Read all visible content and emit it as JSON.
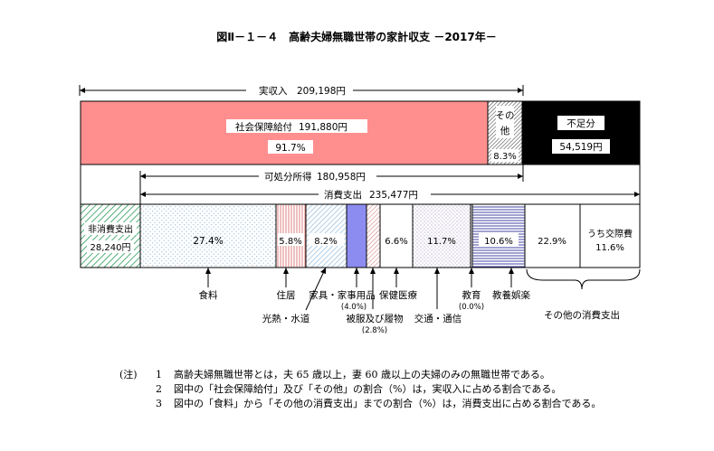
{
  "title": "図Ⅱ－１－４　高齢夫婦無職世帯の家計収支 －2017年－",
  "income": {
    "total_label": "実収入",
    "total_value": "209,198円",
    "social_security_label": "社会保障給付",
    "social_security_value": "191,880円",
    "social_security_pct": "91.7%",
    "other_label_line1": "その",
    "other_label_line2": "他",
    "other_pct": "8.3%",
    "deficit_label": "不足分",
    "deficit_value": "54,519円"
  },
  "disposable": {
    "label": "可処分所得",
    "value": "180,958円"
  },
  "consumption": {
    "label": "消費支出",
    "value": "235,477円"
  },
  "non_consumption": {
    "label": "非消費支出",
    "value": "28,240円"
  },
  "expense_pcts": {
    "food": "27.4%",
    "housing": "5.8%",
    "utilities": "8.2%",
    "culture": "10.6%",
    "health": "6.6%",
    "transport": "11.7%",
    "other": "22.9%",
    "social_label": "うち交際費",
    "social_pct": "11.6%"
  },
  "expense_labels": {
    "food": "食料",
    "housing": "住居",
    "utilities": "光熱・水道",
    "furniture": "家具・家事用品",
    "furniture_pct": "(4.0%)",
    "clothing": "被服及び履物",
    "clothing_pct": "(2.8%)",
    "health": "保健医療",
    "transport": "交通・通信",
    "education": "教育",
    "education_pct": "(0.0%)",
    "culture": "教養娯楽",
    "other": "その他の消費支出"
  },
  "notes": {
    "tag": "(注)",
    "items": [
      {
        "num": "1",
        "text": "高齢夫婦無職世帯とは，夫 65 歳以上，妻 60 歳以上の夫婦のみの無職世帯である。"
      },
      {
        "num": "2",
        "text": "図中の「社会保障給付」及び「その他」の割合（%）は，実収入に占める割合である。"
      },
      {
        "num": "3",
        "text": "図中の「食料」から「その他の消費支出」までの割合（%）は，消費支出に占める割合である。"
      }
    ]
  },
  "colors": {
    "social_security": "#ff8f8f",
    "deficit": "#000000",
    "furniture": "#8c8cf0",
    "food_dots": "#aac4dc",
    "housing_stripes": "#e07474",
    "utilities_hatch": "#7fb0d6",
    "clothing_hatch": "#d07878",
    "transport_dots": "#c0c0dd",
    "culture_lines": "#30309a",
    "non_consumption_hatch": "#2a9a5a"
  }
}
